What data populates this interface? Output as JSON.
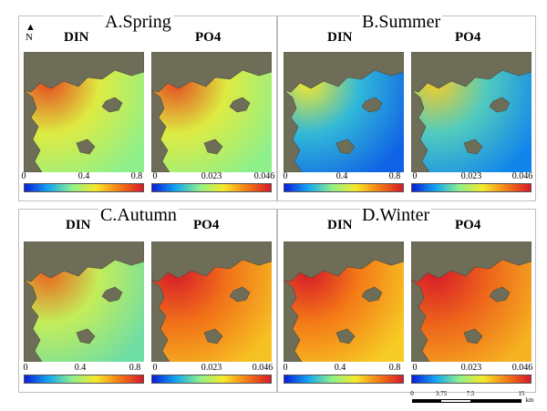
{
  "panels": [
    {
      "id": "spring",
      "title": "A.Spring"
    },
    {
      "id": "summer",
      "title": "B.Summer"
    },
    {
      "id": "autumn",
      "title": "C.Autumn"
    },
    {
      "id": "winter",
      "title": "D.Winter"
    }
  ],
  "variables": {
    "din": "DIN",
    "po4": "PO4"
  },
  "colorbar": {
    "din_ticks": [
      "0",
      "0.4",
      "0.8"
    ],
    "po4_ticks": [
      "0",
      "0.023",
      "0.046"
    ],
    "colors": [
      "#0a1cd8",
      "#13a6f2",
      "#8ef08a",
      "#f7e92a",
      "#f47a16",
      "#d7192a"
    ]
  },
  "north_arrow": "N",
  "scale_bar": {
    "ticks": [
      "0",
      "3.75",
      "7.5",
      "15"
    ],
    "unit": "km"
  },
  "field_levels": {
    "spring": {
      "din": 0.55,
      "po4": 0.55
    },
    "summer": {
      "din": 0.25,
      "po4": 0.3
    },
    "autumn": {
      "din": 0.5,
      "po4": 0.82
    },
    "winter": {
      "din": 0.8,
      "po4": 0.85
    }
  }
}
